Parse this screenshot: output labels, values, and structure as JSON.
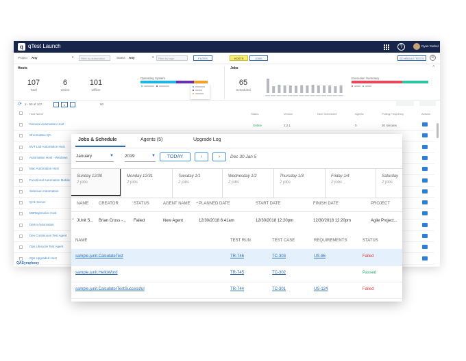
{
  "app": {
    "title": "qTest Launch",
    "logo_letter": "q",
    "user_name": "Ryan Yackel",
    "help_glyph": "?"
  },
  "filters": {
    "project_label": "Project",
    "project_value": "Any",
    "placeholder1": "Filter by automation",
    "status_label": "Status",
    "status_value": "Any",
    "placeholder2": "Filter by tags",
    "filter_btn": "FILTER",
    "toggle_hosts": "HOSTS",
    "toggle_jobs": "JOBS",
    "schedule_btn": "SCHEDULE TESTS"
  },
  "hosts_panel": {
    "title": "Hosts",
    "stats": [
      {
        "value": "107",
        "label": "Total"
      },
      {
        "value": "6",
        "label": "Online"
      },
      {
        "value": "101",
        "label": "Offline"
      }
    ],
    "os_title": "Operating System"
  },
  "jobs_panel": {
    "title": "Jobs",
    "stat_value": "65",
    "stat_label": "Scheduled",
    "exec_title": "Execution Summary",
    "bars": [
      0.95,
      0.45,
      0.55,
      0.5,
      0.5,
      0.48,
      0.52,
      0.5,
      0.55,
      0.5,
      0.5,
      0.5,
      0.45,
      0.5
    ]
  },
  "list_toolbar": {
    "pager_text": "1 - 50 of 107",
    "page": "1",
    "per_page": "50"
  },
  "host_table": {
    "headers": [
      "Host Name",
      "Status",
      "Version",
      "Next Scheduled",
      "Agents",
      "Polling Frequency",
      "Actions"
    ],
    "rows": [
      "General Automation Host",
      "ChromeBox QA",
      "BVT Lab Automation Host",
      "Automation Host - Windows",
      "Mac Automation Host",
      "Functional Automation Mobile",
      "Selenium Automation",
      "QA1 Server",
      "DBRegression Host",
      "Demo Automation",
      "Dev Continuous Test Agent",
      "Ops Lifecycle Test Agent",
      "Ops Upgraded Host"
    ],
    "first_status": "Online",
    "first_version": "2.2.1",
    "first_agents": "0",
    "first_poll": "30 minutes"
  },
  "footer_brand": "QASymphony",
  "front": {
    "tabs": [
      "Jobs & Schedule",
      "Agents (5)",
      "Upgrade Log"
    ],
    "month": "January",
    "year": "2019",
    "today_btn": "TODAY",
    "prev_btn": "‹",
    "next_btn": "›",
    "date_range": "Dec 30 Jan 5",
    "days": [
      {
        "name": "Sunday 12/30",
        "jobs": "2 jobs"
      },
      {
        "name": "Monday 12/31",
        "jobs": "2 jobs"
      },
      {
        "name": "Tuesday 1/1",
        "jobs": "2 jobs"
      },
      {
        "name": "Wednesday 1/2",
        "jobs": "2 jobs"
      },
      {
        "name": "Thursday 1/3",
        "jobs": "2 jobs"
      },
      {
        "name": "Friday 1/4",
        "jobs": "2 jobs"
      },
      {
        "name": "Saturday",
        "jobs": "2 jobs"
      }
    ],
    "job_headers": [
      "NAME",
      "CREATOR",
      "STATUS",
      "AGENT NAME",
      "PLANNED DATE",
      "START DATE",
      "FINISH DATE",
      "PROJECT"
    ],
    "job_row": [
      "JUnit S...",
      "Brian Cross -...",
      "Failed",
      "New Agent",
      "12/30/2018 6:41am",
      "12/30/2018 12:20pm",
      "12/30/2018 12:20pm",
      "Agile Project..."
    ],
    "test_headers": [
      "NAME",
      "TEST RUN",
      "TEST CASE",
      "REQUIREMENTS",
      "STATUS"
    ],
    "test_rows": [
      {
        "name": "sample.junit.CalculateTest",
        "run": "TR-746",
        "case": "TC-303",
        "req": "US-86",
        "status": "Failed"
      },
      {
        "name": "sample.junit.HelloWord",
        "run": "TR-745",
        "case": "TC-302",
        "req": "",
        "status": "Passed"
      },
      {
        "name": "sample.junit.CalculatorTestSuccessful",
        "run": "TR-744",
        "case": "TC-301",
        "req": "US-124",
        "status": "Failed"
      }
    ]
  },
  "colors": {
    "navy": "#17254a",
    "link": "#2b6cb0",
    "failed": "#d9363e",
    "passed": "#27a56a",
    "accent": "#4a90d9"
  }
}
